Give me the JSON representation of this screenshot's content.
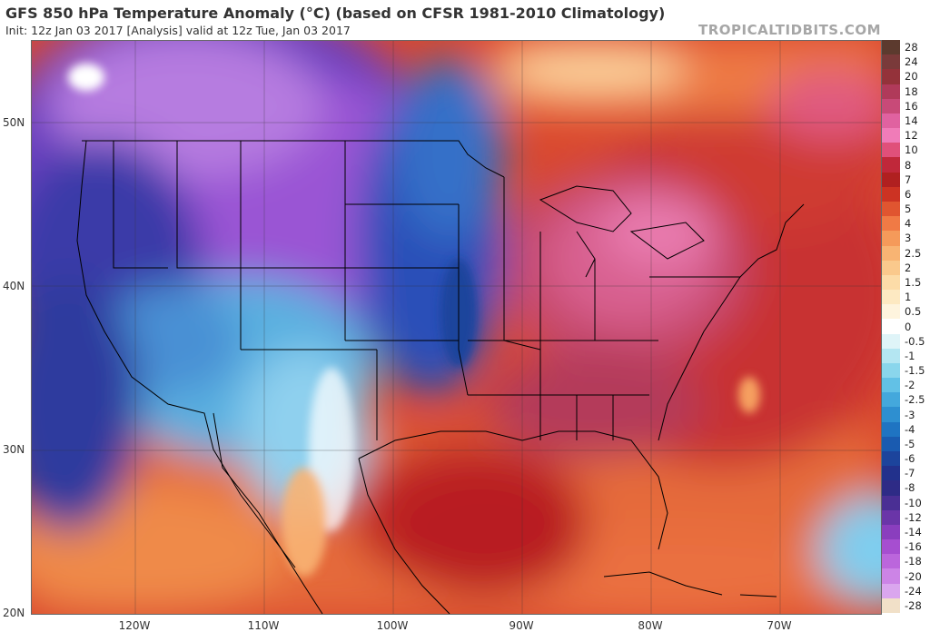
{
  "header": {
    "title": "GFS 850 hPa Temperature Anomaly (°C) (based on CFSR 1981-2010 Climatology)",
    "subtitle": "Init: 12z Jan 03 2017   [Analysis]   valid at 12z Tue, Jan 03 2017",
    "credit": "TROPICALTIDBITS.COM"
  },
  "map": {
    "lat_labels": [
      "50N",
      "40N",
      "30N",
      "20N"
    ],
    "lon_labels": [
      "120W",
      "110W",
      "100W",
      "90W",
      "80W",
      "70W"
    ]
  },
  "colorbar": {
    "levels": [
      "28",
      "24",
      "20",
      "18",
      "16",
      "14",
      "12",
      "10",
      "8",
      "7",
      "6",
      "5",
      "4",
      "3",
      "2.5",
      "2",
      "1.5",
      "1",
      "0.5",
      "0",
      "-0.5",
      "-1",
      "-1.5",
      "-2",
      "-2.5",
      "-3",
      "-4",
      "-5",
      "-6",
      "-7",
      "-8",
      "-10",
      "-12",
      "-14",
      "-16",
      "-18",
      "-20",
      "-24",
      "-28"
    ],
    "colors": [
      "#5c3a2e",
      "#7a3a3a",
      "#94323a",
      "#b03a5a",
      "#c84a78",
      "#e062a0",
      "#f07cb8",
      "#e0507a",
      "#c0283a",
      "#b02020",
      "#cc3323",
      "#e05530",
      "#f07a45",
      "#f59a5a",
      "#f8b473",
      "#fac98c",
      "#fcdca8",
      "#fde9c2",
      "#fef4de",
      "#ffffff",
      "#dff4f8",
      "#b4e6f2",
      "#8ad6ec",
      "#62c1e6",
      "#44a8dc",
      "#2e8fd0",
      "#1f74c2",
      "#1a5bb0",
      "#1c449c",
      "#22318c",
      "#2e2b86",
      "#4a2f94",
      "#6a35a8",
      "#8a3ebe",
      "#a64ed0",
      "#bb66dc",
      "#cc84e6",
      "#daa6ee",
      "#f1e0c8"
    ]
  }
}
